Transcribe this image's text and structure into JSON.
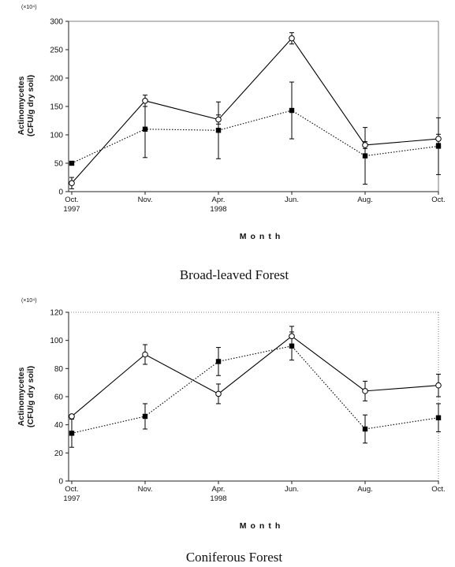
{
  "chart_data": [
    {
      "type": "line",
      "caption": "Broad-leaved Forest",
      "y_multiplier": "(×10⁴)",
      "ylabel": "Actinomycetes",
      "ylabel_unit": "(CFU/g dry soil)",
      "xlabel": "Month",
      "ylim": [
        0,
        300
      ],
      "yticks": [
        0,
        50,
        100,
        150,
        200,
        250,
        300
      ],
      "grid": false,
      "legend": false,
      "categories": [
        {
          "month": "Oct.",
          "year": "1997"
        },
        {
          "month": "Nov."
        },
        {
          "month": "Apr.",
          "year": "1998"
        },
        {
          "month": "Jun."
        },
        {
          "month": "Aug."
        },
        {
          "month": "Oct."
        }
      ],
      "series": [
        {
          "marker": "open-circle",
          "line_style": "solid",
          "color": "#000000",
          "values": [
            15,
            160,
            127,
            270,
            82,
            93
          ],
          "errors": [
            10,
            10,
            8,
            10,
            6,
            8
          ]
        },
        {
          "marker": "filled-square",
          "line_style": "dotted",
          "color": "#000000",
          "values": [
            50,
            110,
            108,
            143,
            63,
            80
          ],
          "errors": [
            0,
            50,
            50,
            50,
            50,
            50
          ]
        }
      ]
    },
    {
      "type": "line",
      "caption": "Coniferous Forest",
      "y_multiplier": "(×10⁴)",
      "ylabel": "Actinomycetes",
      "ylabel_unit": "(CFU/g dry soil)",
      "xlabel": "Month",
      "ylim": [
        0,
        120
      ],
      "yticks": [
        0,
        20,
        40,
        60,
        80,
        100,
        120
      ],
      "grid": false,
      "legend": false,
      "categories": [
        {
          "month": "Oct.",
          "year": "1997"
        },
        {
          "month": "Nov."
        },
        {
          "month": "Apr.",
          "year": "1998"
        },
        {
          "month": "Jun."
        },
        {
          "month": "Aug."
        },
        {
          "month": "Oct."
        }
      ],
      "series": [
        {
          "marker": "open-circle",
          "line_style": "solid",
          "color": "#000000",
          "values": [
            46,
            90,
            62,
            103,
            64,
            68
          ],
          "errors": [
            0,
            7,
            7,
            7,
            7,
            8
          ]
        },
        {
          "marker": "filled-square",
          "line_style": "dotted",
          "color": "#000000",
          "values": [
            34,
            46,
            85,
            96,
            37,
            45
          ],
          "errors": [
            10,
            9,
            10,
            10,
            10,
            10
          ]
        }
      ]
    }
  ]
}
